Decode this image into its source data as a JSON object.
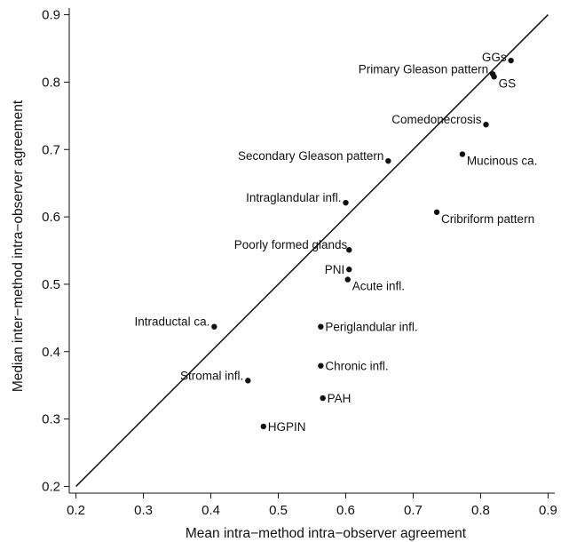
{
  "chart_data": {
    "type": "scatter",
    "title": "",
    "xlabel": "Mean intra−method intra−observer agreement",
    "ylabel": "Median inter−method intra−observer agreement",
    "xlim": [
      0.19,
      0.91
    ],
    "ylim": [
      0.19,
      0.91
    ],
    "xticks": [
      0.2,
      0.3,
      0.4,
      0.5,
      0.6,
      0.7,
      0.8,
      0.9
    ],
    "yticks": [
      0.2,
      0.3,
      0.4,
      0.5,
      0.6,
      0.7,
      0.8,
      0.9
    ],
    "xtick_labels": [
      "0.2",
      "0.3",
      "0.4",
      "0.5",
      "0.6",
      "0.7",
      "0.8",
      "0.9"
    ],
    "ytick_labels": [
      "0.2",
      "0.3",
      "0.4",
      "0.5",
      "0.6",
      "0.7",
      "0.8",
      "0.9"
    ],
    "grid": false,
    "reference_line": {
      "type": "identity",
      "from": [
        0.2,
        0.2
      ],
      "to": [
        0.9,
        0.9
      ]
    },
    "points": [
      {
        "label": "GGs",
        "x": 0.845,
        "y": 0.832,
        "label_side": "left",
        "dx": 0,
        "dy": -4
      },
      {
        "label": "Primary Gleason pattern",
        "x": 0.818,
        "y": 0.812,
        "label_side": "left",
        "dx": 0,
        "dy": -6
      },
      {
        "label": "GS",
        "x": 0.82,
        "y": 0.808,
        "label_side": "right",
        "dx": 0,
        "dy": 7
      },
      {
        "label": "Comedonecrosis",
        "x": 0.808,
        "y": 0.737,
        "label_side": "left",
        "dx": 0,
        "dy": -6
      },
      {
        "label": "Mucinous ca.",
        "x": 0.773,
        "y": 0.693,
        "label_side": "right",
        "dx": 0,
        "dy": 7
      },
      {
        "label": "Secondary Gleason pattern",
        "x": 0.663,
        "y": 0.683,
        "label_side": "left",
        "dx": 0,
        "dy": -6
      },
      {
        "label": "Intraglandular infl.",
        "x": 0.6,
        "y": 0.621,
        "label_side": "left",
        "dx": 0,
        "dy": -6
      },
      {
        "label": "Cribriform pattern",
        "x": 0.735,
        "y": 0.607,
        "label_side": "right",
        "dx": 0,
        "dy": 7
      },
      {
        "label": "Poorly formed glands",
        "x": 0.605,
        "y": 0.551,
        "label_side": "left",
        "dx": 3,
        "dy": -6
      },
      {
        "label": "PNI",
        "x": 0.605,
        "y": 0.522,
        "label_side": "left",
        "dx": 0,
        "dy": 0
      },
      {
        "label": "Acute infl.",
        "x": 0.603,
        "y": 0.507,
        "label_side": "right",
        "dx": 0,
        "dy": 7
      },
      {
        "label": "Intraductal ca.",
        "x": 0.405,
        "y": 0.437,
        "label_side": "left",
        "dx": 0,
        "dy": -6
      },
      {
        "label": "Periglandular infl.",
        "x": 0.563,
        "y": 0.437,
        "label_side": "right",
        "dx": 0,
        "dy": 0
      },
      {
        "label": "Chronic infl.",
        "x": 0.563,
        "y": 0.379,
        "label_side": "right",
        "dx": 0,
        "dy": 0
      },
      {
        "label": "Stromal infl.",
        "x": 0.455,
        "y": 0.357,
        "label_side": "left",
        "dx": 0,
        "dy": -6
      },
      {
        "label": "PAH",
        "x": 0.566,
        "y": 0.331,
        "label_side": "right",
        "dx": 0,
        "dy": 0
      },
      {
        "label": "HGPIN",
        "x": 0.478,
        "y": 0.289,
        "label_side": "right",
        "dx": 0,
        "dy": 0
      }
    ]
  }
}
